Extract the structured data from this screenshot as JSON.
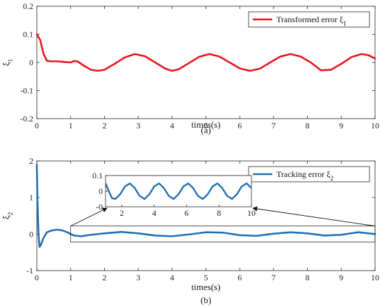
{
  "chart_data": [
    {
      "type": "line",
      "caption": "(a)",
      "xlabel": "times(s)",
      "ylabel": "ξ1",
      "xlim": [
        0,
        10
      ],
      "ylim": [
        -0.2,
        0.2
      ],
      "xticks": [
        "0",
        "1",
        "2",
        "3",
        "4",
        "5",
        "6",
        "7",
        "8",
        "9",
        "10"
      ],
      "yticks": [
        "-0.2",
        "-0.1",
        "0",
        "0.1",
        "0.2"
      ],
      "legend_position": "top-right",
      "series": [
        {
          "name": "Transformed error ξ1",
          "color": "#e8141b",
          "x": [
            0,
            0.1,
            0.2,
            0.3,
            0.4,
            0.6,
            0.8,
            1.0,
            1.1,
            1.2,
            1.4,
            1.6,
            1.8,
            2.0,
            2.3,
            2.6,
            2.9,
            3.2,
            3.5,
            3.8,
            4.0,
            4.2,
            4.5,
            4.8,
            5.1,
            5.4,
            5.7,
            6.0,
            6.3,
            6.6,
            6.9,
            7.2,
            7.5,
            7.8,
            8.1,
            8.4,
            8.7,
            9.0,
            9.3,
            9.6,
            9.8,
            10.0
          ],
          "y": [
            0.1,
            0.08,
            0.03,
            0.006,
            0.004,
            0.004,
            0.002,
            0.0,
            0.005,
            0.004,
            -0.012,
            -0.026,
            -0.03,
            -0.026,
            -0.005,
            0.018,
            0.03,
            0.022,
            0.0,
            -0.022,
            -0.03,
            -0.024,
            -0.002,
            0.02,
            0.03,
            0.021,
            0.0,
            -0.021,
            -0.03,
            -0.022,
            0.0,
            0.021,
            0.03,
            0.021,
            0.0,
            -0.028,
            -0.026,
            -0.005,
            0.019,
            0.03,
            0.026,
            0.014
          ]
        }
      ]
    },
    {
      "type": "line",
      "caption": "(b)",
      "xlabel": "times(s)",
      "ylabel": "ξ2",
      "xlim": [
        0,
        10
      ],
      "ylim": [
        -1,
        2
      ],
      "xticks": [
        "0",
        "1",
        "2",
        "3",
        "4",
        "5",
        "6",
        "7",
        "8",
        "9",
        "10"
      ],
      "yticks": [
        "-1",
        "0",
        "1",
        "2"
      ],
      "legend_position": "top-right",
      "series": [
        {
          "name": "Tracking error ξ2",
          "color": "#1f6fb4",
          "x": [
            0,
            0.02,
            0.05,
            0.08,
            0.12,
            0.2,
            0.3,
            0.45,
            0.6,
            0.75,
            0.9,
            1.0,
            1.1,
            1.3,
            1.6,
            2.0,
            2.5,
            3.0,
            3.5,
            4.0,
            4.5,
            5.0,
            5.5,
            6.0,
            6.5,
            7.0,
            7.5,
            8.0,
            8.5,
            9.0,
            9.5,
            10.0
          ],
          "y": [
            1.9,
            0.9,
            0.0,
            -0.35,
            -0.3,
            -0.1,
            0.05,
            0.1,
            0.12,
            0.1,
            0.05,
            0.0,
            -0.04,
            -0.06,
            -0.02,
            0.02,
            0.06,
            0.02,
            -0.04,
            -0.06,
            -0.01,
            0.05,
            0.04,
            -0.03,
            -0.05,
            0.01,
            0.05,
            0.02,
            -0.04,
            -0.02,
            0.05,
            0.0
          ]
        }
      ],
      "inset": {
        "xlim": [
          1,
          10
        ],
        "ylim": [
          -0.1,
          0.1
        ],
        "xticks": [
          "2",
          "4",
          "6",
          "8",
          "10"
        ],
        "yticks": [
          "-0",
          "0",
          "0.1"
        ],
        "x": [
          1,
          1.2,
          1.4,
          1.6,
          1.9,
          2.2,
          2.5,
          2.8,
          3.1,
          3.4,
          3.7,
          4.0,
          4.3,
          4.6,
          4.9,
          5.2,
          5.5,
          5.8,
          6.1,
          6.4,
          6.7,
          7.0,
          7.3,
          7.6,
          7.9,
          8.2,
          8.5,
          8.8,
          9.1,
          9.4,
          9.7,
          10.0
        ],
        "y": [
          0.05,
          0.0,
          -0.045,
          -0.05,
          -0.02,
          0.03,
          0.05,
          0.02,
          -0.03,
          -0.05,
          -0.02,
          0.03,
          0.05,
          0.02,
          -0.03,
          -0.05,
          -0.02,
          0.03,
          0.05,
          0.02,
          -0.03,
          -0.05,
          -0.02,
          0.03,
          0.05,
          0.02,
          -0.03,
          -0.05,
          -0.02,
          0.03,
          0.05,
          0.02
        ]
      }
    }
  ]
}
